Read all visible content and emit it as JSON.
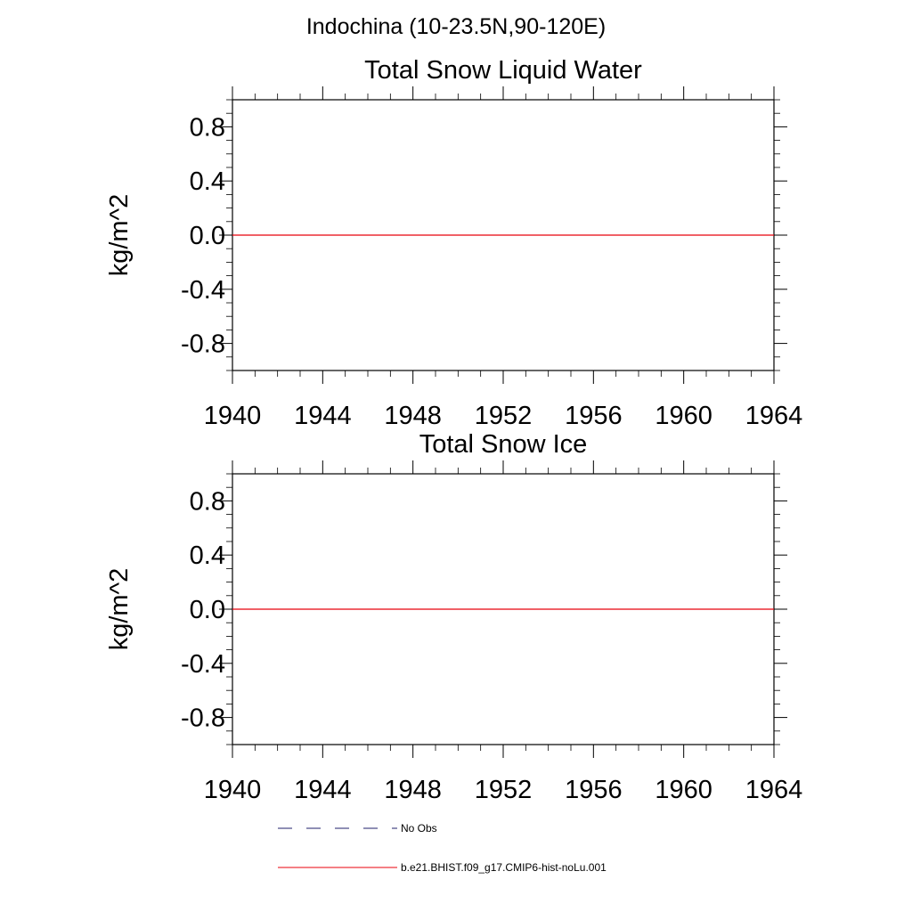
{
  "figure": {
    "title": "Indochina (10-23.5N,90-120E)"
  },
  "colors": {
    "series_model": "#e8000b",
    "series_obs": "#1f1f6b",
    "axis": "#000000"
  },
  "chart_data": [
    {
      "type": "line",
      "title": "Total Snow Liquid Water",
      "xlabel": "",
      "ylabel": "kg/m^2",
      "xlim": [
        1940,
        1964
      ],
      "ylim": [
        -1.0,
        1.0
      ],
      "xticks": [
        "1940",
        "1944",
        "1948",
        "1952",
        "1956",
        "1960",
        "1964"
      ],
      "yticks": [
        "0.8",
        "0.4",
        "0.0",
        "-0.4",
        "-0.8"
      ],
      "grid": false,
      "series": [
        {
          "name": "b.e21.BHIST.f09_g17.CMIP6-hist-noLu.001",
          "x": [
            1940,
            1964
          ],
          "y": [
            0.0,
            0.0
          ]
        }
      ]
    },
    {
      "type": "line",
      "title": "Total Snow Ice",
      "xlabel": "",
      "ylabel": "kg/m^2",
      "xlim": [
        1940,
        1964
      ],
      "ylim": [
        -1.0,
        1.0
      ],
      "xticks": [
        "1940",
        "1944",
        "1948",
        "1952",
        "1956",
        "1960",
        "1964"
      ],
      "yticks": [
        "0.8",
        "0.4",
        "0.0",
        "-0.4",
        "-0.8"
      ],
      "grid": false,
      "series": [
        {
          "name": "b.e21.BHIST.f09_g17.CMIP6-hist-noLu.001",
          "x": [
            1940,
            1964
          ],
          "y": [
            0.0,
            0.0
          ]
        }
      ]
    }
  ],
  "legend": {
    "placement": "bottom",
    "items": [
      {
        "label": "No Obs",
        "style": "dashed"
      },
      {
        "label": "b.e21.BHIST.f09_g17.CMIP6-hist-noLu.001",
        "style": "solid"
      }
    ]
  }
}
